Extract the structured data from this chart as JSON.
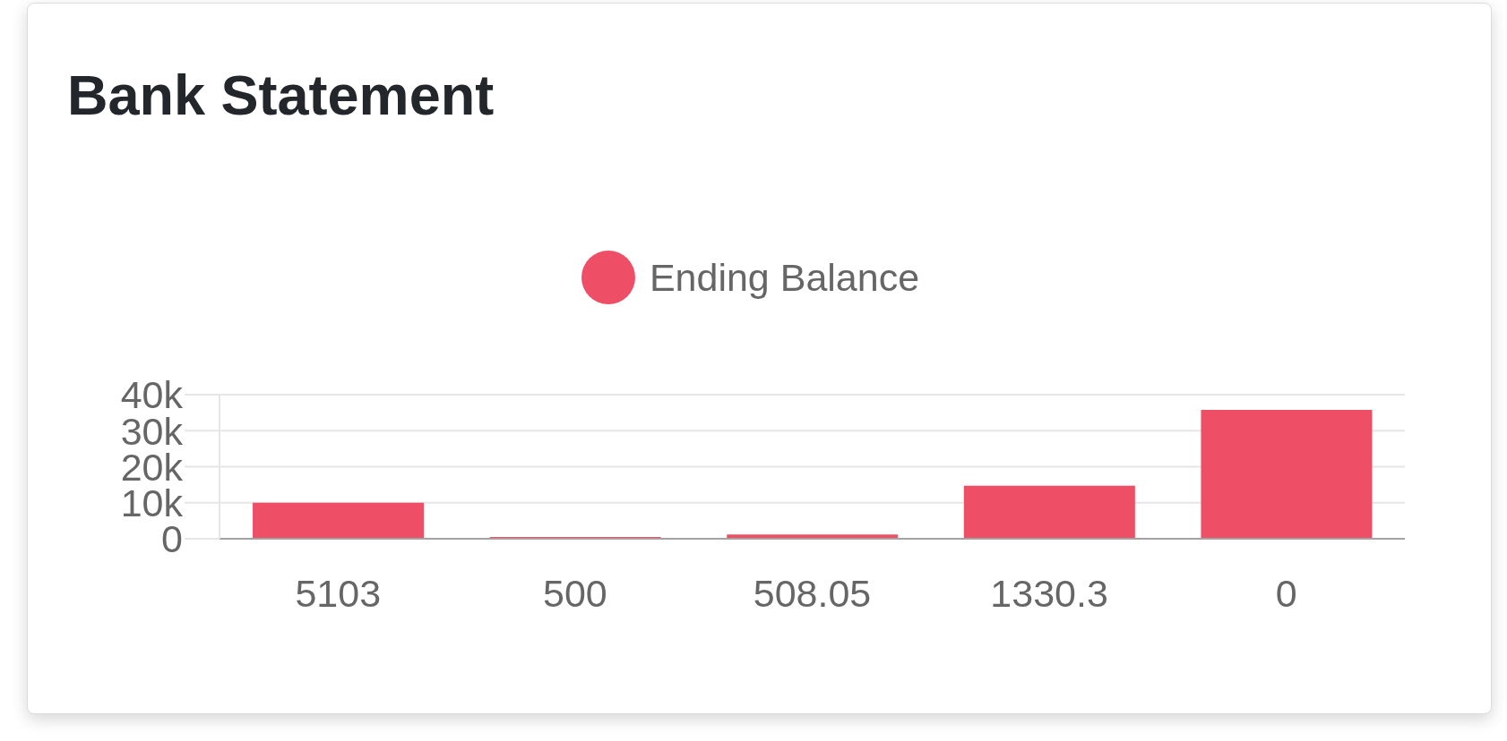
{
  "chart_data": {
    "type": "bar",
    "title": "Bank Statement",
    "categories": [
      "5103",
      "500",
      "508.05",
      "1330.3",
      "0"
    ],
    "series": [
      {
        "name": "Ending Balance",
        "color": "#ef4f66",
        "values": [
          10000,
          500,
          1200,
          14700,
          35800
        ]
      }
    ],
    "ylim": [
      0,
      40000
    ],
    "yticks": [
      0,
      {
        "value": 10000,
        "label": "10k"
      },
      {
        "value": 20000,
        "label": "20k"
      },
      {
        "value": 30000,
        "label": "30k"
      },
      {
        "value": 40000,
        "label": "40k"
      }
    ],
    "grid": "y",
    "legend": "top"
  }
}
